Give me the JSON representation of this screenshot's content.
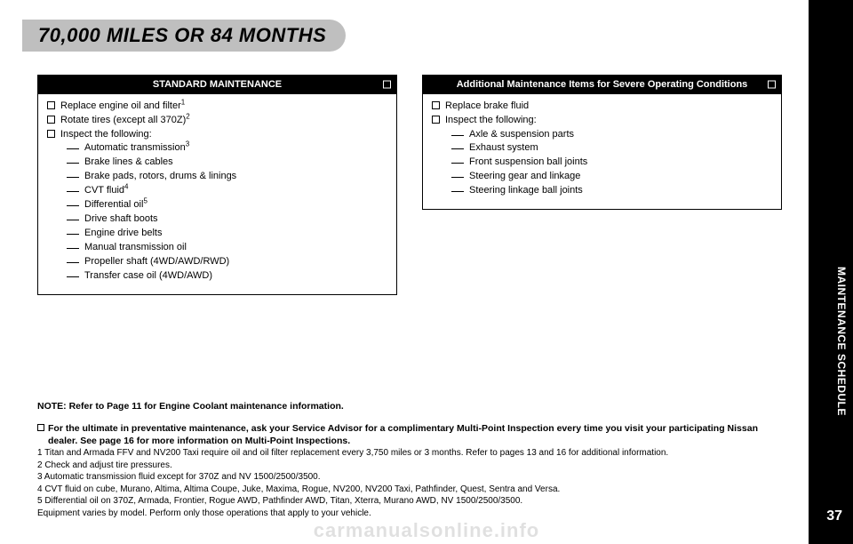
{
  "header": {
    "title": "70,000 MILES OR 84 MONTHS"
  },
  "side_tab": "MAINTENANCE SCHEDULE",
  "page_number": "37",
  "watermark": "carmanualsonline.info",
  "panels": {
    "standard": {
      "title": "STANDARD MAINTENANCE",
      "items": [
        {
          "text": "Replace engine oil and filter",
          "sup": "1"
        },
        {
          "text": "Rotate tires (except all 370Z)",
          "sup": "2"
        },
        {
          "text": "Inspect the following:"
        }
      ],
      "subitems": [
        {
          "text": "Automatic transmission",
          "sup": "3"
        },
        {
          "text": "Brake lines & cables"
        },
        {
          "text": "Brake pads, rotors, drums & linings"
        },
        {
          "text": "CVT fluid",
          "sup": "4"
        },
        {
          "text": "Differential oil",
          "sup": "5"
        },
        {
          "text": "Drive shaft boots"
        },
        {
          "text": "Engine drive belts"
        },
        {
          "text": "Manual transmission oil"
        },
        {
          "text": "Propeller shaft (4WD/AWD/RWD)"
        },
        {
          "text": "Transfer case oil (4WD/AWD)"
        }
      ]
    },
    "severe": {
      "title": "Additional Maintenance Items for Severe Operating Conditions",
      "items": [
        {
          "text": "Replace brake fluid"
        },
        {
          "text": "Inspect the following:"
        }
      ],
      "subitems": [
        {
          "text": "Axle & suspension parts"
        },
        {
          "text": "Exhaust system"
        },
        {
          "text": "Front suspension ball joints"
        },
        {
          "text": "Steering gear and linkage"
        },
        {
          "text": "Steering linkage ball joints"
        }
      ]
    }
  },
  "footer": {
    "note_label": "NOTE:",
    "note_text": "Refer to Page 11 for Engine Coolant maintenance information.",
    "lead": "For the ultimate in preventative maintenance, ask your Service Advisor for a complimentary Multi-Point Inspection every time you visit your participating Nissan dealer. See page 16 for more information on Multi-Point Inspections.",
    "fn1": "1 Titan and Armada FFV and NV200 Taxi require oil and oil filter replacement every 3,750 miles or 3 months. Refer to pages 13 and 16 for additional information.",
    "fn2": "2 Check and adjust tire pressures.",
    "fn3": "3 Automatic transmission fluid except for 370Z and NV 1500/2500/3500.",
    "fn4": "4 CVT fluid on cube, Murano, Altima, Altima Coupe, Juke, Maxima, Rogue, NV200, NV200 Taxi, Pathfinder, Quest, Sentra and Versa.",
    "fn5": "5 Differential oil on 370Z, Armada, Frontier, Rogue AWD, Pathfinder AWD, Titan, Xterra, Murano AWD, NV 1500/2500/3500.",
    "fn6": "Equipment varies by model. Perform only those operations that apply to your vehicle."
  }
}
